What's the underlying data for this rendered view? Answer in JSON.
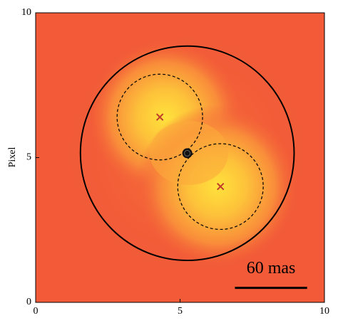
{
  "chart_data": {
    "type": "scatter",
    "ylabel": "Pixel",
    "xlim": [
      0,
      10
    ],
    "ylim": [
      0,
      10
    ],
    "xticks": [
      0,
      5,
      10
    ],
    "yticks": [
      0,
      5,
      10
    ],
    "markers": {
      "x": [
        4.3,
        6.4
      ],
      "y": [
        6.4,
        4.0
      ],
      "color": "#c0392b"
    },
    "center": {
      "x": 5.25,
      "y": 5.15,
      "color": "#111111"
    },
    "circles": [
      {
        "cx": 5.25,
        "cy": 5.15,
        "r": 3.7,
        "style": "solid"
      },
      {
        "cx": 4.3,
        "cy": 6.4,
        "r": 1.48,
        "style": "dashed"
      },
      {
        "cx": 6.4,
        "cy": 4.0,
        "r": 1.48,
        "style": "dashed"
      }
    ],
    "scale_bar": {
      "label": "60 mas",
      "x": 6.9,
      "y": 0.5,
      "length": 2.5
    }
  }
}
